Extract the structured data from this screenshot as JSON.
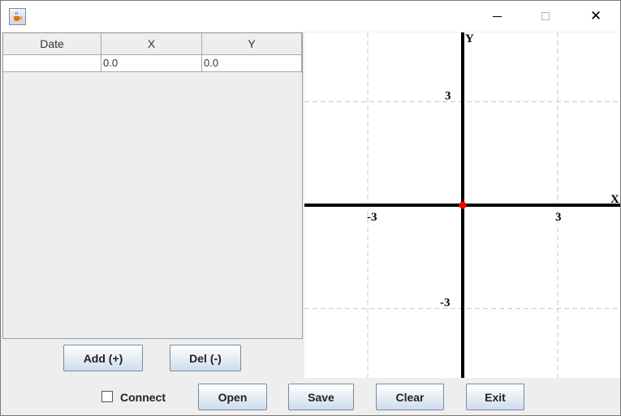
{
  "window": {
    "app_icon": "java-coffee-cup-icon",
    "controls": {
      "minimize": "minimize-icon",
      "maximize": "maximize-icon",
      "close": "close-icon"
    }
  },
  "table": {
    "columns": [
      "Date",
      "X",
      "Y"
    ],
    "rows": [
      {
        "date": "",
        "x": "0.0",
        "y": "0.0"
      }
    ]
  },
  "buttons": {
    "add": "Add (+)",
    "del": "Del (-)",
    "open": "Open",
    "save": "Save",
    "clear": "Clear",
    "exit": "Exit"
  },
  "connect": {
    "label": "Connect",
    "checked": false
  },
  "chart_data": {
    "type": "scatter",
    "xlabel": "X",
    "ylabel": "Y",
    "xlim": [
      -5,
      5
    ],
    "ylim": [
      -5,
      5.5
    ],
    "x_ticks": [
      -3,
      3
    ],
    "y_ticks": [
      3,
      -3
    ],
    "x_tick_labels": [
      "-3",
      "3"
    ],
    "y_tick_labels": [
      "3",
      "-3"
    ],
    "grid": true,
    "series": [
      {
        "points": [
          {
            "x": 0.0,
            "y": 0.0
          }
        ],
        "color": "#ff0000"
      }
    ]
  }
}
